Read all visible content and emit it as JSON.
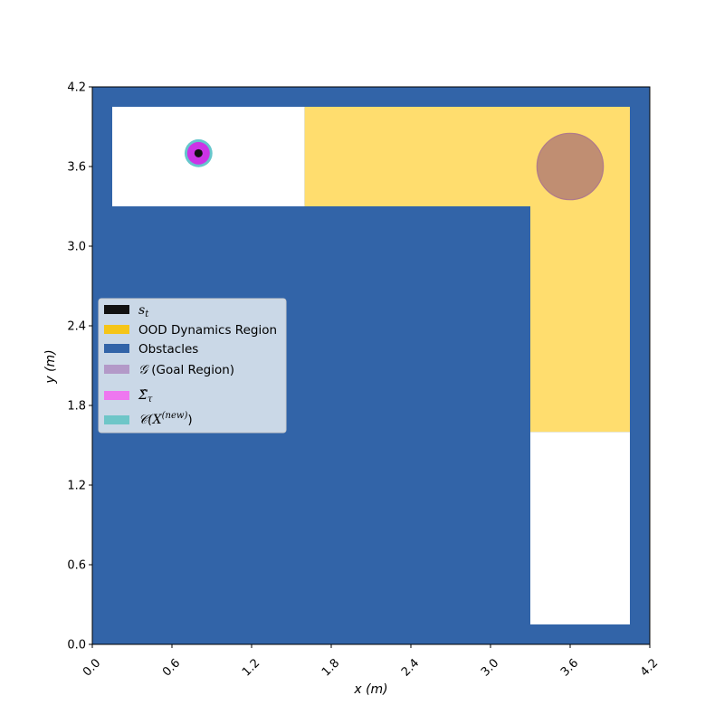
{
  "chart_data": {
    "type": "scatter",
    "xlabel": "x (m)",
    "ylabel": "y (m)",
    "xlim": [
      0.0,
      4.2
    ],
    "ylim": [
      0.0,
      4.2
    ],
    "xticks": [
      "0.0",
      "0.6",
      "1.2",
      "1.8",
      "2.4",
      "3.0",
      "3.6",
      "4.2"
    ],
    "yticks": [
      "0.0",
      "0.6",
      "1.2",
      "1.8",
      "2.4",
      "3.0",
      "3.6",
      "4.2"
    ],
    "xtick_rotation_deg": 45,
    "grid": false,
    "legend_position": "center-left",
    "colors": {
      "state": "#111111",
      "ood": "#ffdd6e",
      "ood_legend": "#f5c518",
      "obstacles": "#3264a8",
      "goal": "#c08e72",
      "goal_edge": "#b07a8a",
      "goal_legend": "#b399c8",
      "sigma": "#cc33e6",
      "sigma_legend": "#ee77f0",
      "conformal": "#66c6cc",
      "conformal_legend": "#6ec6c8"
    },
    "regions": {
      "obstacles": {
        "x": [
          0.0,
          4.2
        ],
        "y": [
          0.0,
          4.2
        ]
      },
      "free_top_left": {
        "x": [
          0.15,
          1.6
        ],
        "y": [
          3.3,
          4.05
        ]
      },
      "ood_dynamics": [
        {
          "x": [
            1.6,
            4.05
          ],
          "y": [
            3.3,
            4.05
          ]
        },
        {
          "x": [
            3.3,
            4.05
          ],
          "y": [
            1.6,
            3.3
          ]
        }
      ],
      "free_bottom_right": {
        "x": [
          3.3,
          4.05
        ],
        "y": [
          0.15,
          1.6
        ]
      }
    },
    "goal_region": {
      "center": [
        3.6,
        3.6
      ],
      "radius": 0.25
    },
    "state": {
      "x": 0.8,
      "y": 3.7
    },
    "sigma_ellipse": {
      "center": [
        0.8,
        3.7
      ],
      "radius": 0.085
    },
    "conformal_region": {
      "center": [
        0.8,
        3.7
      ],
      "radius": 0.105
    },
    "legend": {
      "state_symbol": "s",
      "state_sub": "t",
      "ood": "OOD Dynamics Region",
      "obstacles": "Obstacles",
      "goal_symbol": "𝒢",
      "goal_text": " (Goal Region)",
      "sigma_symbol": "Σ̂",
      "sigma_sub": "τ",
      "conformal_symbol": "𝒞(X",
      "conformal_sup": "(new)",
      "conformal_close": ")"
    }
  }
}
